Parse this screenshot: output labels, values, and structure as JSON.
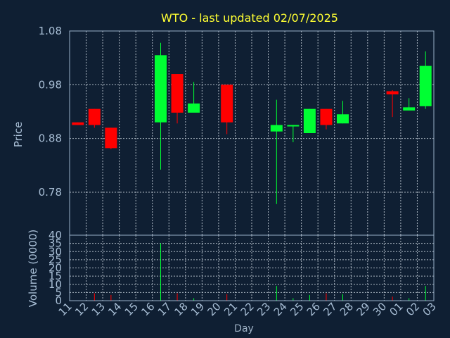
{
  "chart_data": [
    {
      "type": "candlestick",
      "title": "WTO - last updated 02/07/2025",
      "ylabel": "Price",
      "ylim": [
        0.7,
        1.08
      ],
      "yticks": [
        0.78,
        0.88,
        0.98,
        1.08
      ],
      "ytick_labels": [
        "0.78",
        "0.88",
        "0.98",
        "1.08"
      ],
      "grid": true,
      "up_color": "#00ff33",
      "down_color": "#ff0000",
      "categories": [
        "11",
        "12",
        "13",
        "14",
        "15",
        "16",
        "17",
        "18",
        "19",
        "20",
        "21",
        "22",
        "23",
        "24",
        "25",
        "26",
        "27",
        "28",
        "29",
        "30",
        "01",
        "02",
        "03"
      ],
      "candles": [
        {
          "day": "11",
          "open": 0.91,
          "high": 0.91,
          "low": 0.905,
          "close": 0.905
        },
        {
          "day": "12",
          "open": 0.935,
          "high": 0.935,
          "low": 0.9,
          "close": 0.905
        },
        {
          "day": "13",
          "open": 0.9,
          "high": 0.9,
          "low": 0.86,
          "close": 0.862
        },
        {
          "day": "16",
          "open": 0.91,
          "high": 1.058,
          "low": 0.822,
          "close": 1.035
        },
        {
          "day": "17",
          "open": 1.0,
          "high": 1.0,
          "low": 0.908,
          "close": 0.928
        },
        {
          "day": "18",
          "open": 0.928,
          "high": 0.985,
          "low": 0.928,
          "close": 0.945
        },
        {
          "day": "20",
          "open": 0.98,
          "high": 0.98,
          "low": 0.888,
          "close": 0.91
        },
        {
          "day": "23",
          "open": 0.893,
          "high": 0.952,
          "low": 0.758,
          "close": 0.905
        },
        {
          "day": "24",
          "open": 0.903,
          "high": 0.905,
          "low": 0.873,
          "close": 0.905
        },
        {
          "day": "25",
          "open": 0.89,
          "high": 0.935,
          "low": 0.89,
          "close": 0.935
        },
        {
          "day": "26",
          "open": 0.935,
          "high": 0.935,
          "low": 0.897,
          "close": 0.905
        },
        {
          "day": "27",
          "open": 0.908,
          "high": 0.95,
          "low": 0.908,
          "close": 0.925
        },
        {
          "day": "30",
          "open": 0.968,
          "high": 0.97,
          "low": 0.92,
          "close": 0.962
        },
        {
          "day": "01",
          "open": 0.932,
          "high": 0.955,
          "low": 0.932,
          "close": 0.938
        },
        {
          "day": "02",
          "open": 0.94,
          "high": 1.042,
          "low": 0.935,
          "close": 1.015
        }
      ]
    },
    {
      "type": "bar",
      "ylabel": "Volume (0000)",
      "xlabel": "Day",
      "ylim": [
        0,
        40
      ],
      "yticks": [
        0,
        5,
        10,
        15,
        20,
        25,
        30,
        35,
        40
      ],
      "ytick_labels": [
        "0",
        "5",
        "10",
        "15",
        "20",
        "25",
        "30",
        "35",
        "40"
      ],
      "grid": true,
      "categories": [
        "11",
        "12",
        "13",
        "14",
        "15",
        "16",
        "17",
        "18",
        "19",
        "20",
        "21",
        "22",
        "23",
        "24",
        "25",
        "26",
        "27",
        "28",
        "29",
        "30",
        "01",
        "02",
        "03"
      ],
      "bars": [
        {
          "day": "12",
          "value": 4.5,
          "direction": "down"
        },
        {
          "day": "13",
          "value": 3.5,
          "direction": "down"
        },
        {
          "day": "16",
          "value": 35,
          "direction": "up"
        },
        {
          "day": "17",
          "value": 4.5,
          "direction": "down"
        },
        {
          "day": "18",
          "value": 1.5,
          "direction": "up"
        },
        {
          "day": "20",
          "value": 4,
          "direction": "down"
        },
        {
          "day": "23",
          "value": 9,
          "direction": "up"
        },
        {
          "day": "24",
          "value": 1.5,
          "direction": "up"
        },
        {
          "day": "25",
          "value": 3.5,
          "direction": "up"
        },
        {
          "day": "26",
          "value": 4.5,
          "direction": "down"
        },
        {
          "day": "27",
          "value": 4,
          "direction": "up"
        },
        {
          "day": "30",
          "value": 2.5,
          "direction": "down"
        },
        {
          "day": "01",
          "value": 1.5,
          "direction": "up"
        },
        {
          "day": "02",
          "value": 9,
          "direction": "up"
        }
      ]
    }
  ]
}
